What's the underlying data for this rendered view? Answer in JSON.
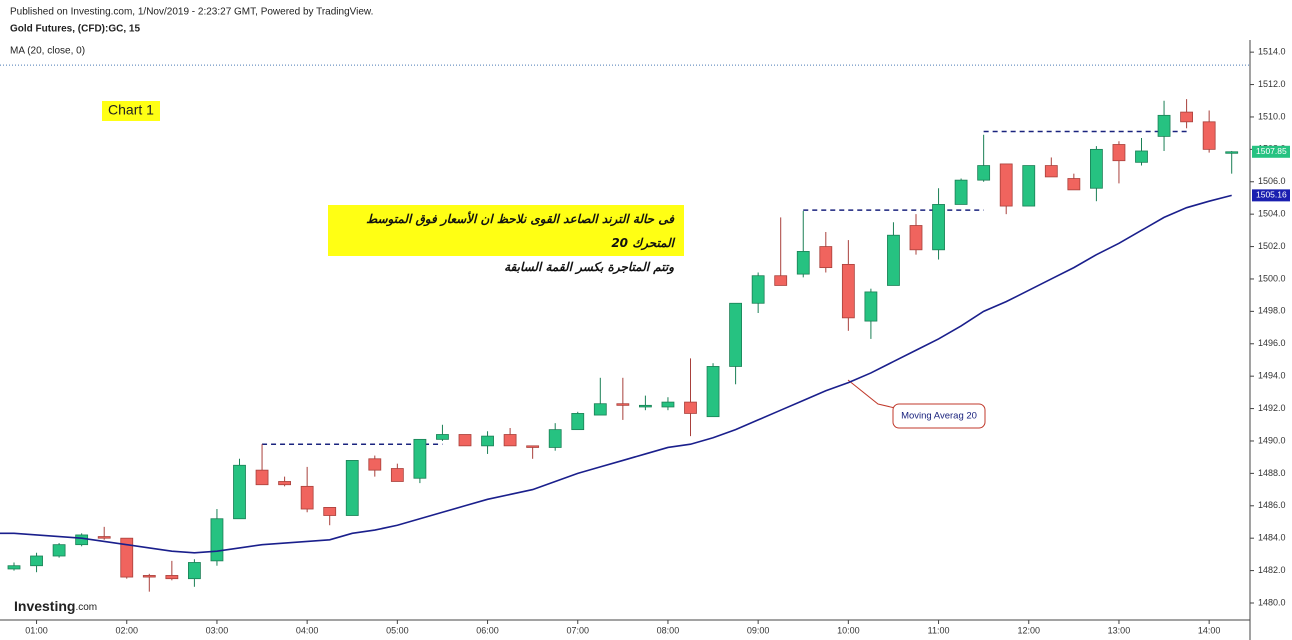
{
  "chart_data": {
    "type": "candlestick",
    "publisher": "Published on Investing.com, 1/Nov/2019 - 2:23:27 GMT, Powered by TradingView.",
    "title": "Gold Futures, (CFD):GC, 15",
    "chart_label": "Chart 1",
    "annotation_lines": [
      "فى حالة الترند الصاعد القوى نلاحظ ان الأسعار فوق المتوسط المتحرك 20",
      "وتتم المتاجرة بكسر القمة السابقة"
    ],
    "callout": "Moving Averag 20",
    "logo": [
      "Investing",
      ".com"
    ],
    "categories": [
      null,
      "01:00",
      null,
      null,
      null,
      "02:00",
      null,
      null,
      null,
      "03:00",
      null,
      null,
      null,
      "04:00",
      null,
      null,
      null,
      "05:00",
      null,
      null,
      null,
      "06:00",
      null,
      null,
      null,
      "07:00",
      null,
      null,
      null,
      "08:00",
      null,
      null,
      null,
      "09:00",
      null,
      null,
      null,
      "10:00",
      null,
      null,
      null,
      "11:00",
      null,
      null,
      null,
      "12:00",
      null,
      null,
      null,
      "13:00",
      null,
      null,
      null,
      "14:00",
      null
    ],
    "open": [
      1482.1,
      1482.3,
      1482.9,
      1483.6,
      1484.1,
      1484.0,
      1481.7,
      1481.7,
      1481.5,
      1482.6,
      1485.2,
      1488.2,
      1487.5,
      1487.2,
      1485.9,
      1485.4,
      1488.9,
      1488.3,
      1487.7,
      1490.1,
      1490.4,
      1489.7,
      1490.4,
      1489.7,
      1489.6,
      1490.7,
      1491.6,
      1492.3,
      1492.1,
      1492.1,
      1492.4,
      1491.5,
      1494.6,
      1498.5,
      1500.2,
      1500.3,
      1502.0,
      1500.9,
      1497.4,
      1499.6,
      1503.3,
      1501.8,
      1504.6,
      1506.1,
      1507.1,
      1504.5,
      1507.0,
      1506.2,
      1505.6,
      1508.3,
      1507.2,
      1508.8,
      1510.3,
      1509.7,
      1507.8
    ],
    "high": [
      1482.5,
      1483.1,
      1483.7,
      1484.3,
      1484.7,
      1484.0,
      1481.8,
      1482.6,
      1482.7,
      1485.8,
      1488.9,
      1489.8,
      1487.8,
      1488.4,
      1485.9,
      1488.8,
      1489.1,
      1488.6,
      1490.1,
      1491.0,
      1490.4,
      1490.6,
      1490.8,
      1489.7,
      1491.1,
      1491.8,
      1493.9,
      1493.9,
      1492.8,
      1492.7,
      1495.1,
      1494.8,
      1498.5,
      1500.4,
      1503.8,
      1504.2,
      1502.9,
      1502.4,
      1499.4,
      1503.5,
      1504.0,
      1505.6,
      1506.2,
      1508.9,
      1507.1,
      1507.0,
      1507.5,
      1506.5,
      1508.2,
      1508.5,
      1508.7,
      1511.0,
      1511.1,
      1510.4,
      1507.9
    ],
    "low": [
      1482.0,
      1481.9,
      1482.8,
      1483.5,
      1483.9,
      1481.5,
      1480.7,
      1481.4,
      1481.0,
      1482.3,
      1485.2,
      1487.3,
      1487.2,
      1485.6,
      1484.8,
      1485.4,
      1487.8,
      1487.5,
      1487.4,
      1490.0,
      1489.7,
      1489.2,
      1489.7,
      1488.9,
      1489.4,
      1490.7,
      1491.6,
      1491.3,
      1491.9,
      1491.9,
      1490.3,
      1491.5,
      1493.5,
      1497.9,
      1499.6,
      1500.1,
      1500.4,
      1496.8,
      1496.3,
      1499.6,
      1501.5,
      1501.2,
      1504.6,
      1506.0,
      1504.0,
      1504.5,
      1506.3,
      1505.5,
      1504.8,
      1505.9,
      1507.0,
      1507.9,
      1509.3,
      1507.8,
      1506.5
    ],
    "close": [
      1482.3,
      1482.9,
      1483.6,
      1484.2,
      1484.0,
      1481.6,
      1481.6,
      1481.5,
      1482.5,
      1485.2,
      1488.5,
      1487.3,
      1487.3,
      1485.8,
      1485.4,
      1488.8,
      1488.2,
      1487.5,
      1490.1,
      1490.4,
      1489.7,
      1490.3,
      1489.7,
      1489.6,
      1490.7,
      1491.7,
      1492.3,
      1492.2,
      1492.2,
      1492.4,
      1491.7,
      1494.6,
      1498.5,
      1500.2,
      1499.6,
      1501.7,
      1500.7,
      1497.6,
      1499.2,
      1502.7,
      1501.8,
      1504.6,
      1506.1,
      1507.0,
      1504.5,
      1507.0,
      1506.3,
      1505.5,
      1508.0,
      1507.3,
      1507.9,
      1510.1,
      1509.7,
      1508.0,
      1507.85
    ],
    "up_color": "#26c281",
    "down_color": "#f0645e",
    "ma": {
      "name": "MA (20, close, 0)",
      "color": "#1a1f8c",
      "values": [
        1484.3,
        1484.2,
        1484.1,
        1484.0,
        1483.8,
        1483.6,
        1483.4,
        1483.2,
        1483.1,
        1483.2,
        1483.4,
        1483.6,
        1483.7,
        1483.8,
        1483.9,
        1484.3,
        1484.5,
        1484.8,
        1485.2,
        1485.6,
        1486.0,
        1486.4,
        1486.7,
        1487.0,
        1487.5,
        1488.0,
        1488.4,
        1488.8,
        1489.2,
        1489.6,
        1489.8,
        1490.2,
        1490.7,
        1491.3,
        1491.9,
        1492.5,
        1493.1,
        1493.6,
        1494.2,
        1494.9,
        1495.6,
        1496.3,
        1497.1,
        1498.0,
        1498.6,
        1499.3,
        1500.0,
        1500.7,
        1501.5,
        1502.2,
        1503.0,
        1503.8,
        1504.4,
        1504.8,
        1505.16
      ]
    },
    "price_markers": [
      {
        "value": 1507.85,
        "color": "#26c281"
      },
      {
        "value": 1505.16,
        "color": "#1a1fb0"
      }
    ],
    "level_lines": [
      {
        "value": 1489.8,
        "start": 11,
        "end": 19
      },
      {
        "value": 1504.25,
        "start": 35,
        "end": 43
      },
      {
        "value": 1509.1,
        "start": 43,
        "end": 52
      }
    ],
    "level_color": "#1a237e",
    "dotted_line": 1513.2,
    "ylim": [
      1478.95,
      1514.75
    ],
    "yticks": [
      {
        "value": 1480,
        "label": "1480.0"
      },
      {
        "value": 1482,
        "label": "1482.0"
      },
      {
        "value": 1484,
        "label": "1484.0"
      },
      {
        "value": 1486,
        "label": "1486.0"
      },
      {
        "value": 1488,
        "label": "1488.0"
      },
      {
        "value": 1490,
        "label": "1490.0"
      },
      {
        "value": 1492,
        "label": "1492.0"
      },
      {
        "value": 1494,
        "label": "1494.0"
      },
      {
        "value": 1496,
        "label": "1496.0"
      },
      {
        "value": 1498,
        "label": "1498.0"
      },
      {
        "value": 1500,
        "label": "1500.0"
      },
      {
        "value": 1502,
        "label": "1502.0"
      },
      {
        "value": 1504,
        "label": "1504.0"
      },
      {
        "value": 1506,
        "label": "1506.0"
      },
      {
        "value": 1508,
        "label": "1508.0"
      },
      {
        "value": 1510,
        "label": "1510.0"
      },
      {
        "value": 1512,
        "label": "1512.0"
      },
      {
        "value": 1514,
        "label": "1514.0"
      }
    ]
  }
}
